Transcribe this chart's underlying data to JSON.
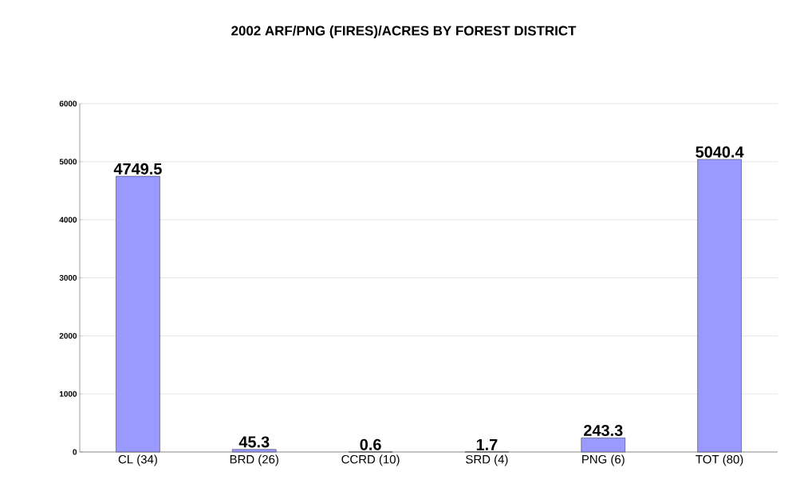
{
  "chart_data": {
    "type": "bar",
    "title": "2002 ARF/PNG (FIRES)/ACRES BY FOREST DISTRICT",
    "categories": [
      "CL (34)",
      "BRD (26)",
      "CCRD (10)",
      "SRD (4)",
      "PNG (6)",
      "TOT (80)"
    ],
    "values": [
      4749.5,
      45.3,
      0.6,
      1.7,
      243.3,
      5040.4
    ],
    "color": "#9999ff",
    "ylim": [
      0,
      6000
    ],
    "yticks": [
      0,
      1000,
      2000,
      3000,
      4000,
      5000,
      6000
    ],
    "grid": "y",
    "data_labels": true
  }
}
